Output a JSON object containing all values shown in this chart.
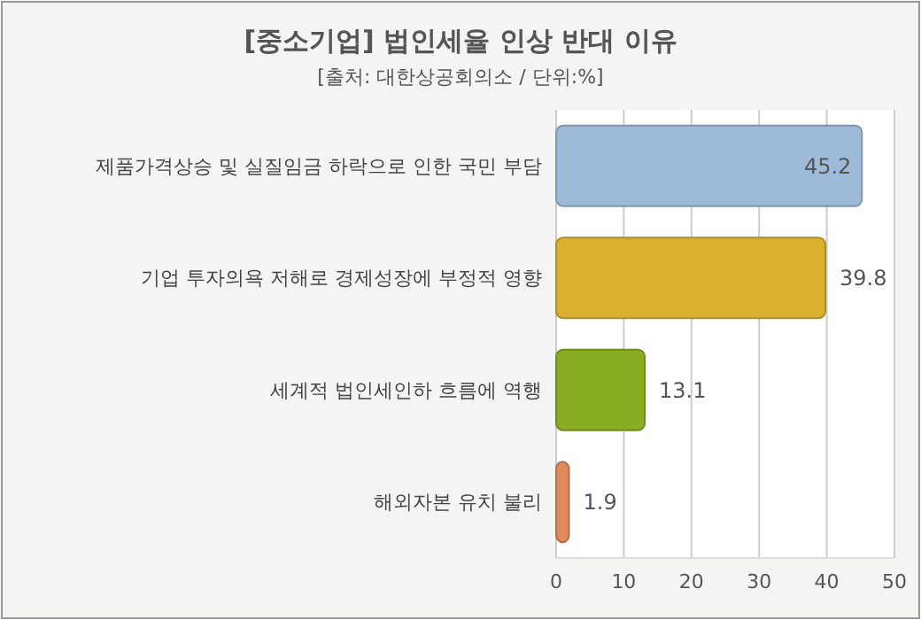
{
  "chart_data": {
    "type": "bar",
    "orientation": "horizontal",
    "title": "[중소기업] 법인세율 인상 반대 이유",
    "subtitle": "[출처: 대한상공회의소 / 단위:%]",
    "categories": [
      "제품가격상승 및 실질임금 하락으로 인한 국민 부담",
      "기업 투자의욕 저해로 경제성장에 부정적 영향",
      "세계적 법인세인하 흐름에 역행",
      "해외자본 유치 불리"
    ],
    "values": [
      45.2,
      39.8,
      13.1,
      1.9
    ],
    "colors": [
      "#9dbbd8",
      "#d9b030",
      "#8aac24",
      "#e08a5a"
    ],
    "xlim": [
      0,
      50
    ],
    "xticks": [
      0,
      10,
      20,
      30,
      40,
      50
    ],
    "grid": "x",
    "data_labels": true
  }
}
